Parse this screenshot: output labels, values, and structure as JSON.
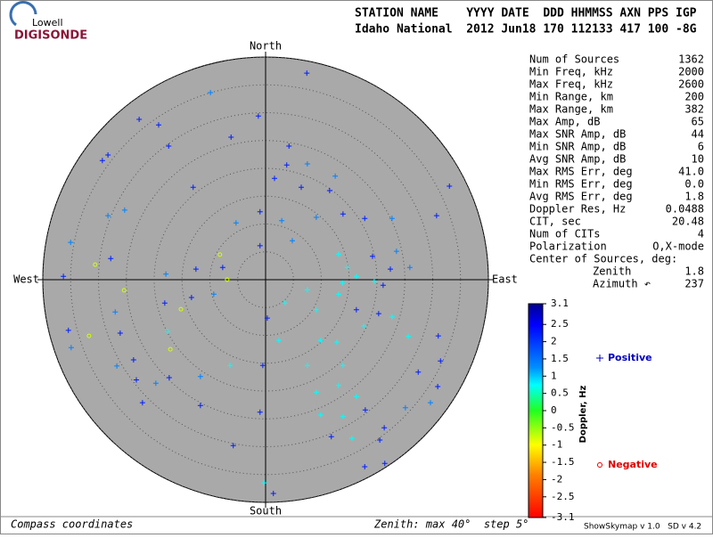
{
  "logo": {
    "line1": "Lowell",
    "line2": "DIGISONDE"
  },
  "header": {
    "columns": "STATION NAME    YYYY DATE  DDD HHMMSS AXN PPS IGP",
    "values": "Idaho National  2012 Jun18 170 112133 417 100 -8G"
  },
  "stats": {
    "rows": [
      [
        "Num of Sources",
        "1362"
      ],
      [
        "Min Freq, kHz",
        "2000"
      ],
      [
        "Max Freq, kHz",
        "2600"
      ],
      [
        "Min Range, km",
        "200"
      ],
      [
        "Max Range, km",
        "382"
      ],
      [
        "Max Amp, dB",
        "65"
      ],
      [
        "Max SNR Amp, dB",
        "44"
      ],
      [
        "Min SNR Amp, dB",
        "6"
      ],
      [
        "Avg SNR Amp, dB",
        "10"
      ],
      [
        "Max RMS Err, deg",
        "41.0"
      ],
      [
        "Min RMS Err, deg",
        "0.0"
      ],
      [
        "Avg RMS Err, deg",
        "1.8"
      ],
      [
        "Doppler Res, Hz",
        "0.0488"
      ],
      [
        "CIT, sec",
        "20.48"
      ],
      [
        "Num of CITs",
        "4"
      ],
      [
        "Polarization",
        "O,X-mode"
      ],
      [
        "Center of Sources, deg:",
        ""
      ],
      [
        "Zenith",
        "1.8"
      ],
      [
        "Azimuth ↶",
        "237"
      ]
    ]
  },
  "footer": {
    "left": "Compass coordinates",
    "middle": "Zenith: max 40°  step 5°",
    "right": "ShowSkymap v 1.0   SD v 4.2"
  },
  "chart_data": {
    "type": "skymap",
    "directions": {
      "north": "North",
      "south": "South",
      "east": "East",
      "west": "West"
    },
    "rlim": [
      0,
      40
    ],
    "rticks": [
      5,
      10,
      15,
      20,
      25,
      30,
      35,
      40
    ],
    "colorbar": {
      "label": "Doppler, Hz",
      "lim": [
        -3.1,
        3.1
      ],
      "ticks": [
        3.1,
        2.5,
        2,
        1.5,
        1,
        0.5,
        0,
        -0.5,
        -1,
        -1.5,
        -2,
        -2.5,
        -3.1
      ]
    },
    "series": [
      {
        "name": "Positive",
        "marker": "+",
        "color": "#0000c0",
        "x": [
          7.4,
          -9.9,
          -22.7,
          -19.2,
          -1.3,
          -6.2,
          -17.4,
          4.2,
          -29.3,
          -28.3,
          3.8,
          7.5,
          -13.0,
          1.6,
          6.4,
          12.5,
          11.5,
          33.0,
          -25.3,
          -28.3,
          -5.3,
          -1.0,
          2.9,
          9.1,
          13.9,
          17.8,
          22.7,
          30.7,
          -35.0,
          -27.8,
          -1.0,
          4.8,
          13.1,
          14.7,
          13.8,
          16.3,
          19.5,
          21.1,
          22.4,
          19.2,
          23.5,
          25.9,
          -36.3,
          -17.9,
          -12.5,
          -7.7,
          -18.1,
          -27.0,
          -13.3,
          -9.3,
          0.3,
          3.5,
          9.1,
          16.3,
          20.3,
          22.7,
          -35.4,
          -26.1,
          -34.9,
          -17.6,
          2.4,
          9.9,
          17.6,
          25.6,
          31.0,
          -23.7,
          -26.7,
          -17.3,
          -11.7,
          -6.4,
          -0.5,
          7.5,
          13.9,
          31.4,
          -23.2,
          -19.7,
          9.1,
          13.1,
          16.3,
          27.4,
          30.9,
          -22.1,
          -11.7,
          -1.0,
          9.9,
          13.9,
          17.9,
          25.1,
          29.6,
          11.8,
          15.5,
          20.5,
          21.3,
          -5.8,
          17.8,
          21.4,
          -0.3,
          1.4,
          12.8,
          7.5,
          13.1
        ],
        "y": [
          37.1,
          33.6,
          28.8,
          27.8,
          29.4,
          25.6,
          24.0,
          24.0,
          21.4,
          22.4,
          20.6,
          20.8,
          16.6,
          18.2,
          16.6,
          18.6,
          16.0,
          16.8,
          12.5,
          11.5,
          10.2,
          12.2,
          10.6,
          11.2,
          11.8,
          11.0,
          11.0,
          11.5,
          6.7,
          3.8,
          6.1,
          7.0,
          4.6,
          2.2,
          -0.6,
          0.6,
          -0.3,
          -1.0,
          1.9,
          4.2,
          5.1,
          2.2,
          0.6,
          1.0,
          1.9,
          2.2,
          -4.2,
          -5.8,
          -3.2,
          -2.6,
          -6.9,
          -4.2,
          -5.4,
          -5.4,
          -6.1,
          -6.7,
          -9.1,
          -9.6,
          -12.2,
          -9.3,
          -10.9,
          -10.9,
          -8.3,
          -10.2,
          -10.1,
          -14.4,
          -15.5,
          -17.6,
          -17.4,
          -15.4,
          -15.4,
          -15.4,
          -15.4,
          -14.6,
          -18.0,
          -18.6,
          -20.2,
          -19.0,
          -21.0,
          -16.6,
          -19.2,
          -22.1,
          -22.6,
          -23.8,
          -24.3,
          -24.6,
          -23.4,
          -23.0,
          -22.1,
          -28.2,
          -28.5,
          -28.8,
          -26.6,
          -29.8,
          -33.6,
          -33.0,
          -36.5,
          -38.4,
          -11.2,
          -1.8,
          -2.6
        ],
        "doppler": [
          2.3,
          1.6,
          2.3,
          2.3,
          2.3,
          2.3,
          2.3,
          2.3,
          2.3,
          2.3,
          2.3,
          1.6,
          2.3,
          2.3,
          2.3,
          1.6,
          2.3,
          2.3,
          1.6,
          1.6,
          1.6,
          2.3,
          1.6,
          1.6,
          2.3,
          2.3,
          1.6,
          2.3,
          1.6,
          2.3,
          2.3,
          1.6,
          1.0,
          1.0,
          1.0,
          1.0,
          1.0,
          2.3,
          2.3,
          2.3,
          1.6,
          1.6,
          2.3,
          1.6,
          2.3,
          2.3,
          2.3,
          1.6,
          2.3,
          1.6,
          2.3,
          1.0,
          1.0,
          2.3,
          2.3,
          1.0,
          2.3,
          2.3,
          1.6,
          1.0,
          1.0,
          1.0,
          1.0,
          1.0,
          2.3,
          2.3,
          1.6,
          2.3,
          1.6,
          1.0,
          2.3,
          1.0,
          1.0,
          2.3,
          2.3,
          1.6,
          1.0,
          1.0,
          1.0,
          2.3,
          2.3,
          2.3,
          2.3,
          2.3,
          1.0,
          1.0,
          2.3,
          1.6,
          1.6,
          2.3,
          1.0,
          2.3,
          2.3,
          2.3,
          2.3,
          2.3,
          1.0,
          2.3,
          1.0,
          1.0,
          1.0
        ]
      },
      {
        "name": "Negative",
        "marker": "o",
        "color": "#e00000",
        "x": [
          -30.6,
          -8.2,
          -6.9,
          -25.4,
          -15.2,
          -31.7,
          -17.1
        ],
        "y": [
          2.7,
          4.5,
          0,
          -1.9,
          -5.3,
          -10.1,
          -12.5
        ],
        "doppler": [
          -0.8,
          -0.8,
          -0.8,
          -0.8,
          -0.8,
          -0.8,
          -0.8
        ]
      }
    ]
  }
}
